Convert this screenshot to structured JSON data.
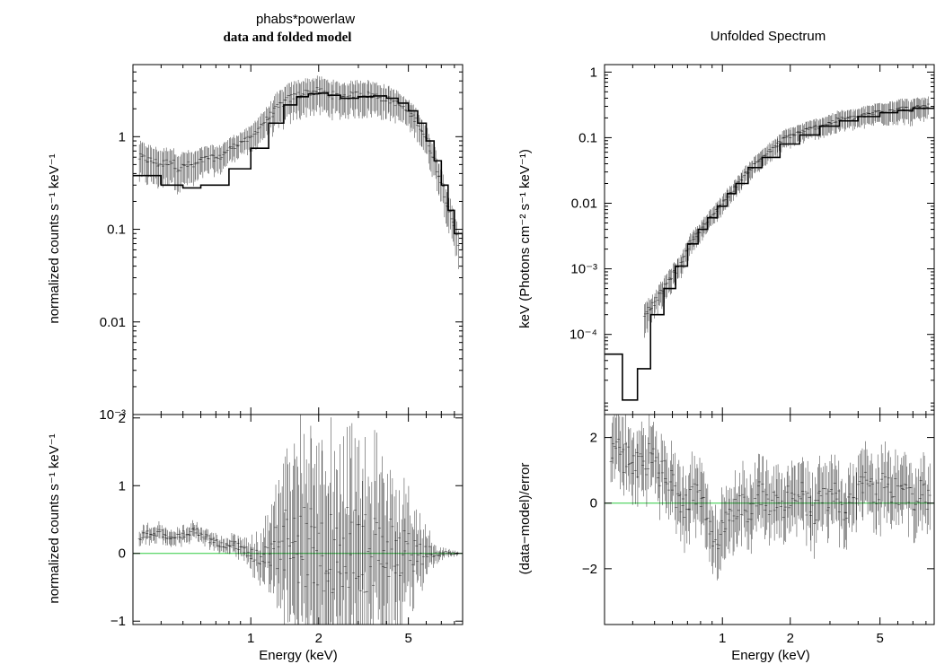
{
  "left_panel": {
    "title": "phabs*powerlaw",
    "subtitle": "data and folded model",
    "top_ylabel": "normalized counts s⁻¹ keV⁻¹",
    "bottom_ylabel": "normalized counts s⁻¹ keV⁻¹",
    "xlabel": "Energy (keV)"
  },
  "right_panel": {
    "title": "Unfolded Spectrum",
    "top_ylabel": "keV (Photons cm⁻² s⁻¹ keV⁻¹)",
    "bottom_ylabel": "(data−model)/error",
    "xlabel": "Energy (keV)"
  },
  "colors": {
    "zero_line": "#2ecc40",
    "data": "#000000"
  },
  "chart_data": [
    {
      "id": "left-top",
      "type": "scatter",
      "title": "phabs*powerlaw",
      "subtitle": "data and folded model",
      "xlabel": "",
      "ylabel": "normalized counts s⁻¹ keV⁻¹",
      "xscale": "log",
      "yscale": "log",
      "xlim": [
        0.3,
        8.7
      ],
      "ylim": [
        0.001,
        6
      ],
      "yticks": [
        {
          "v": 1,
          "label": "1"
        },
        {
          "v": 0.1,
          "label": "0.1"
        },
        {
          "v": 0.01,
          "label": "0.01"
        },
        {
          "v": 0.001,
          "label": "10⁻³"
        }
      ],
      "xticks": [
        {
          "v": 1,
          "label": "1"
        },
        {
          "v": 2,
          "label": "2"
        },
        {
          "v": 5,
          "label": "5"
        }
      ],
      "series": [
        {
          "name": "folded model",
          "kind": "step",
          "x": [
            0.3,
            0.4,
            0.5,
            0.6,
            0.8,
            1.0,
            1.2,
            1.4,
            1.6,
            1.8,
            2.0,
            2.2,
            2.5,
            3.0,
            3.5,
            4.0,
            4.5,
            5.0,
            5.5,
            6.0,
            6.5,
            7.0,
            7.5,
            8.0,
            8.7
          ],
          "y": [
            0.38,
            0.3,
            0.28,
            0.3,
            0.45,
            0.75,
            1.4,
            2.2,
            2.7,
            2.9,
            2.95,
            2.8,
            2.6,
            2.7,
            2.75,
            2.6,
            2.3,
            1.9,
            1.4,
            0.9,
            0.55,
            0.3,
            0.16,
            0.09,
            0.06
          ]
        },
        {
          "name": "data",
          "kind": "errorbar",
          "x": [
            0.32,
            0.36,
            0.4,
            0.44,
            0.48,
            0.52,
            0.56,
            0.6,
            0.66,
            0.72,
            0.78,
            0.85,
            0.92,
            1.0,
            1.1,
            1.2,
            1.3,
            1.45,
            1.6,
            1.8,
            2.0,
            2.2,
            2.5,
            2.8,
            3.1,
            3.5,
            3.9,
            4.3,
            4.8,
            5.3,
            5.8,
            6.3,
            6.8,
            7.3,
            7.8,
            8.3
          ],
          "y": [
            0.6,
            0.55,
            0.5,
            0.55,
            0.45,
            0.5,
            0.48,
            0.55,
            0.6,
            0.58,
            0.7,
            0.8,
            0.9,
            0.95,
            1.3,
            1.6,
            2.0,
            2.5,
            2.8,
            3.0,
            3.1,
            2.9,
            2.7,
            2.8,
            2.9,
            2.8,
            2.6,
            2.4,
            2.0,
            1.6,
            1.1,
            0.7,
            0.4,
            0.22,
            0.12,
            0.07
          ],
          "err": [
            0.25,
            0.22,
            0.2,
            0.2,
            0.18,
            0.18,
            0.18,
            0.18,
            0.18,
            0.18,
            0.2,
            0.22,
            0.22,
            0.3,
            0.4,
            0.5,
            0.8,
            1.0,
            1.1,
            1.1,
            1.2,
            1.1,
            1.0,
            1.0,
            1.1,
            1.0,
            0.9,
            0.8,
            0.6,
            0.5,
            0.35,
            0.25,
            0.14,
            0.08,
            0.05,
            0.03
          ]
        }
      ]
    },
    {
      "id": "left-bottom",
      "type": "scatter",
      "xlabel": "Energy (keV)",
      "ylabel": "normalized counts s⁻¹ keV⁻¹",
      "xscale": "log",
      "yscale": "linear",
      "xlim": [
        0.3,
        8.7
      ],
      "ylim": [
        -1.05,
        2.05
      ],
      "yticks": [
        {
          "v": 2,
          "label": "2"
        },
        {
          "v": 1,
          "label": "1"
        },
        {
          "v": 0,
          "label": "0"
        },
        {
          "v": -1,
          "label": "−1"
        }
      ],
      "xticks": [
        {
          "v": 1,
          "label": "1"
        },
        {
          "v": 2,
          "label": "2"
        },
        {
          "v": 5,
          "label": "5"
        }
      ],
      "zero_line": 0,
      "series": [
        {
          "name": "residuals",
          "kind": "errorbar",
          "x": [
            0.32,
            0.36,
            0.4,
            0.44,
            0.48,
            0.52,
            0.56,
            0.6,
            0.66,
            0.72,
            0.78,
            0.85,
            0.92,
            1.0,
            1.1,
            1.2,
            1.3,
            1.45,
            1.6,
            1.8,
            2.0,
            2.2,
            2.5,
            2.8,
            3.1,
            3.5,
            3.9,
            4.3,
            4.8,
            5.3,
            5.8,
            6.3,
            6.8,
            7.3,
            7.8,
            8.3
          ],
          "y": [
            0.25,
            0.3,
            0.3,
            0.2,
            0.25,
            0.3,
            0.35,
            0.28,
            0.2,
            0.15,
            0.1,
            0.15,
            0.05,
            0.0,
            -0.1,
            0.05,
            0.1,
            0.2,
            0.1,
            0.05,
            0.1,
            -0.05,
            0.0,
            0.1,
            0.05,
            -0.05,
            0.0,
            0.1,
            0.05,
            0.0,
            0.0,
            0.02,
            -0.02,
            0.01,
            0.0,
            0.0
          ],
          "err": [
            0.12,
            0.12,
            0.12,
            0.12,
            0.12,
            0.12,
            0.12,
            0.12,
            0.12,
            0.12,
            0.12,
            0.15,
            0.15,
            0.2,
            0.3,
            0.5,
            0.8,
            1.2,
            1.4,
            1.5,
            1.5,
            1.5,
            1.4,
            1.5,
            1.4,
            1.3,
            1.2,
            1.0,
            0.8,
            0.6,
            0.4,
            0.2,
            0.1,
            0.06,
            0.04,
            0.03
          ]
        }
      ]
    },
    {
      "id": "right-top",
      "type": "scatter",
      "title": "Unfolded Spectrum",
      "xlabel": "",
      "ylabel": "keV (Photons cm⁻² s⁻¹ keV⁻¹)",
      "xscale": "log",
      "yscale": "log",
      "xlim": [
        0.3,
        8.7
      ],
      "ylim": [
        6e-06,
        1.3
      ],
      "yticks": [
        {
          "v": 1,
          "label": "1"
        },
        {
          "v": 0.1,
          "label": "0.1"
        },
        {
          "v": 0.01,
          "label": "0.01"
        },
        {
          "v": 0.001,
          "label": "10⁻³"
        },
        {
          "v": 0.0001,
          "label": "10⁻⁴"
        }
      ],
      "xticks": [
        {
          "v": 1,
          "label": "1"
        },
        {
          "v": 2,
          "label": "2"
        },
        {
          "v": 5,
          "label": "5"
        }
      ],
      "series": [
        {
          "name": "unfolded model",
          "kind": "step",
          "x": [
            0.3,
            0.36,
            0.42,
            0.48,
            0.55,
            0.62,
            0.7,
            0.78,
            0.86,
            0.95,
            1.05,
            1.15,
            1.3,
            1.5,
            1.8,
            2.2,
            2.7,
            3.3,
            4.0,
            5.0,
            6.0,
            7.0,
            8.7
          ],
          "y": [
            5e-05,
            1e-05,
            3e-05,
            0.0002,
            0.0005,
            0.0011,
            0.0024,
            0.004,
            0.006,
            0.009,
            0.014,
            0.02,
            0.035,
            0.05,
            0.08,
            0.11,
            0.15,
            0.18,
            0.21,
            0.24,
            0.26,
            0.28,
            0.3
          ]
        },
        {
          "name": "data",
          "kind": "errorbar",
          "x": [
            0.45,
            0.5,
            0.55,
            0.6,
            0.66,
            0.72,
            0.78,
            0.85,
            0.92,
            1.0,
            1.1,
            1.2,
            1.35,
            1.5,
            1.7,
            1.9,
            2.2,
            2.5,
            2.9,
            3.3,
            3.8,
            4.3,
            4.9,
            5.5,
            6.1,
            6.8,
            7.5,
            8.2
          ],
          "y": [
            0.0002,
            0.0003,
            0.0005,
            0.0008,
            0.0012,
            0.0025,
            0.0035,
            0.005,
            0.007,
            0.01,
            0.015,
            0.022,
            0.035,
            0.05,
            0.07,
            0.1,
            0.12,
            0.14,
            0.16,
            0.19,
            0.2,
            0.22,
            0.25,
            0.26,
            0.28,
            0.27,
            0.29,
            0.3
          ],
          "err": [
            0.0001,
            0.0001,
            0.0002,
            0.0003,
            0.0004,
            0.0008,
            0.001,
            0.0015,
            0.002,
            0.003,
            0.004,
            0.006,
            0.01,
            0.015,
            0.02,
            0.03,
            0.035,
            0.04,
            0.05,
            0.06,
            0.06,
            0.07,
            0.08,
            0.09,
            0.1,
            0.1,
            0.1,
            0.1
          ]
        }
      ]
    },
    {
      "id": "right-bottom",
      "type": "scatter",
      "xlabel": "Energy (keV)",
      "ylabel": "(data−model)/error",
      "xscale": "log",
      "yscale": "linear",
      "xlim": [
        0.3,
        8.7
      ],
      "ylim": [
        -3.7,
        2.7
      ],
      "yticks": [
        {
          "v": 2,
          "label": "2"
        },
        {
          "v": 0,
          "label": "0"
        },
        {
          "v": -2,
          "label": "−2"
        }
      ],
      "xticks": [
        {
          "v": 1,
          "label": "1"
        },
        {
          "v": 2,
          "label": "2"
        },
        {
          "v": 5,
          "label": "5"
        }
      ],
      "zero_line": 0,
      "series": [
        {
          "name": "residuals",
          "kind": "errorbar",
          "x": [
            0.32,
            0.36,
            0.4,
            0.44,
            0.48,
            0.52,
            0.56,
            0.6,
            0.66,
            0.72,
            0.78,
            0.85,
            0.92,
            1.0,
            1.1,
            1.2,
            1.3,
            1.45,
            1.6,
            1.8,
            2.0,
            2.2,
            2.5,
            2.8,
            3.1,
            3.5,
            3.9,
            4.3,
            4.8,
            5.3,
            5.8,
            6.3,
            6.8,
            7.3,
            7.8,
            8.3
          ],
          "y": [
            1.7,
            1.4,
            1.3,
            1.0,
            1.5,
            0.9,
            1.1,
            0.5,
            -0.2,
            0.2,
            0.3,
            -0.5,
            -1.5,
            -0.8,
            -0.3,
            0.1,
            -0.5,
            0.3,
            0.0,
            -0.2,
            0.2,
            0.4,
            -0.4,
            0.1,
            0.3,
            -0.1,
            0.2,
            0.5,
            0.3,
            0.6,
            0.4,
            0.2,
            0.1,
            0.3,
            0.2,
            0.1
          ],
          "err": [
            1.0,
            1.0,
            1.0,
            1.0,
            1.0,
            1.0,
            1.0,
            1.0,
            1.0,
            1.0,
            1.0,
            1.0,
            1.0,
            1.0,
            1.0,
            1.0,
            1.0,
            1.0,
            1.0,
            1.0,
            1.0,
            1.0,
            1.0,
            1.0,
            1.0,
            1.0,
            1.0,
            1.0,
            1.0,
            1.0,
            1.0,
            1.0,
            1.0,
            1.0,
            1.0,
            1.0
          ]
        }
      ]
    }
  ]
}
